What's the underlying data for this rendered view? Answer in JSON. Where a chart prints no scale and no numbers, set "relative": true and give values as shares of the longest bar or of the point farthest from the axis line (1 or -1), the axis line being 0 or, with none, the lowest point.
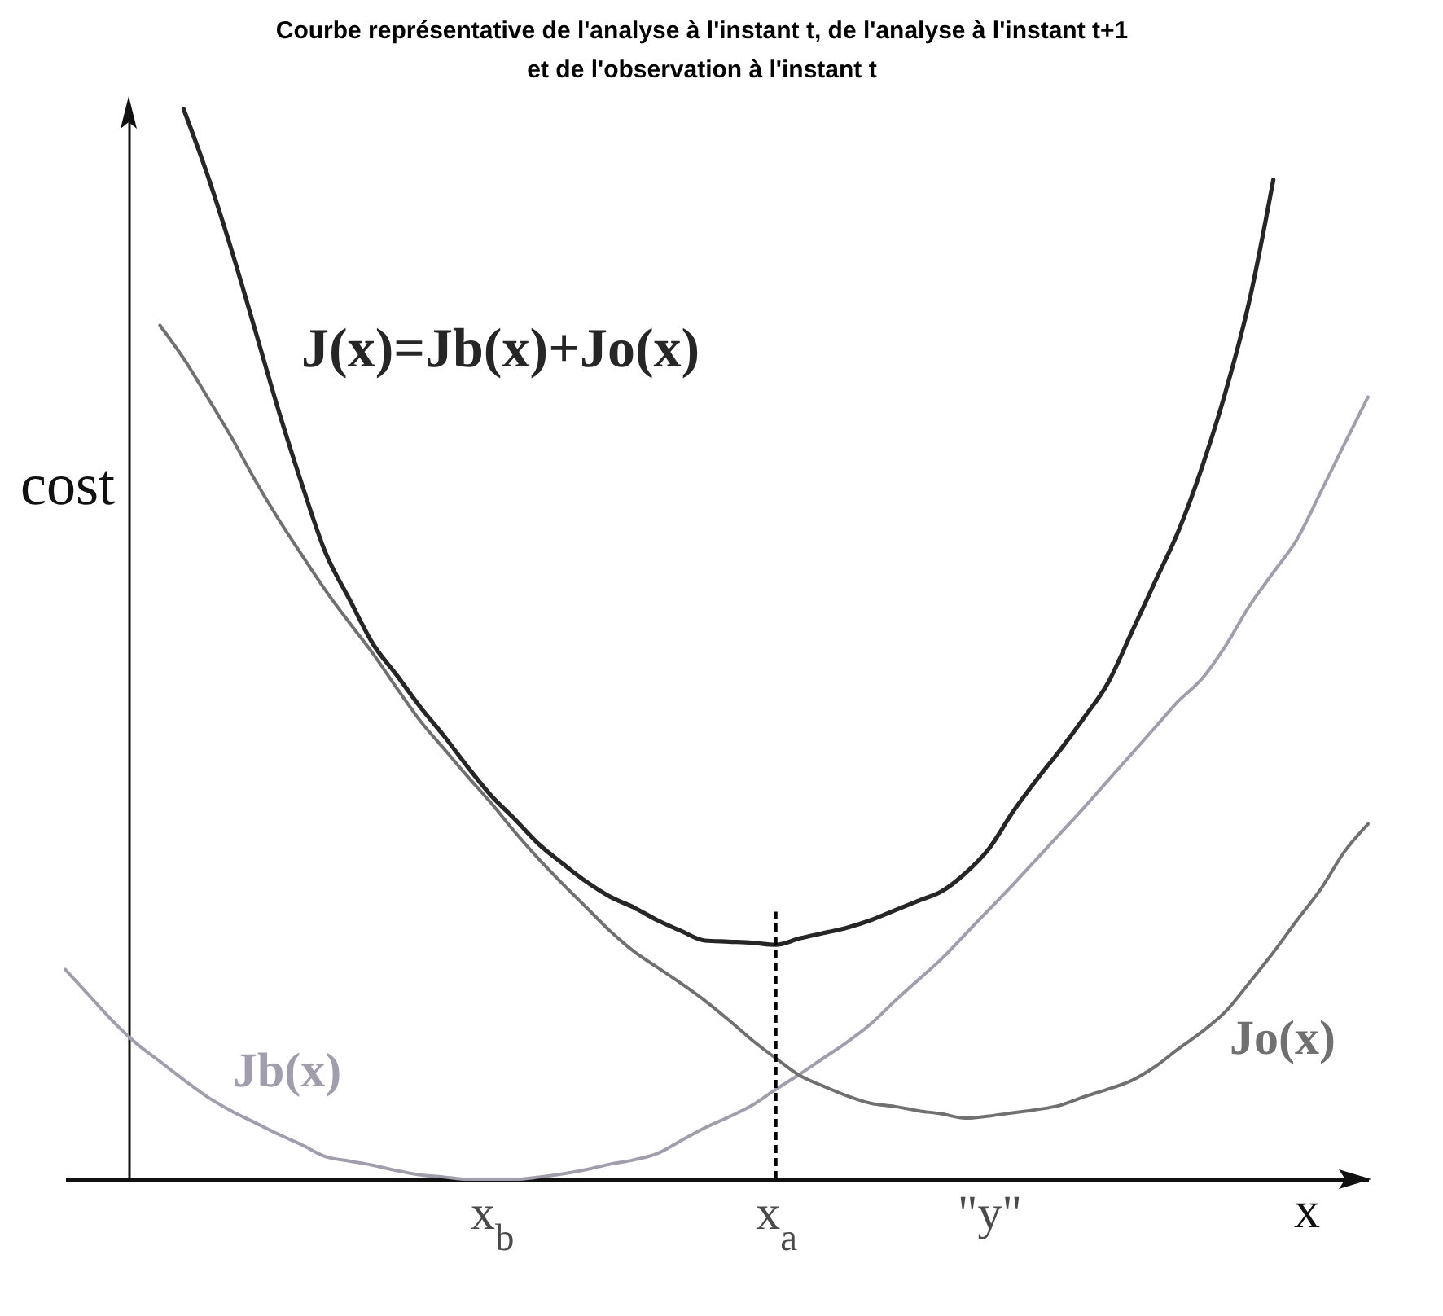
{
  "chart_data": {
    "type": "line",
    "title": "Courbe représentative de l'analyse à l'instant t, de l'analyse à l'instant t+1\net de l'observation à l'instant t",
    "xlabel": "x",
    "ylabel": "cost",
    "relative": true,
    "categories": [
      null,
      null,
      null,
      null,
      null,
      null,
      null,
      null,
      null,
      null,
      null,
      null,
      null,
      null,
      null,
      null,
      null,
      null,
      "x$_{b}$",
      null,
      null,
      null,
      null,
      null,
      null,
      null,
      null,
      null,
      null,
      null,
      "x$_{a}$",
      null,
      null,
      null,
      null,
      null,
      null,
      null,
      null,
      "\"y\"",
      null,
      null,
      null,
      null,
      null,
      null,
      null,
      null,
      null,
      null,
      null,
      null,
      null,
      null,
      null,
      null
    ],
    "series": [
      {
        "name": "J(x)=Jb(x)+Jo(x)",
        "color": "#262626",
        "values": [
          null,
          null,
          null,
          null,
          null,
          1.0,
          0.939,
          0.87,
          0.795,
          0.719,
          0.649,
          0.585,
          0.542,
          0.5,
          0.471,
          0.441,
          0.414,
          0.385,
          0.358,
          0.336,
          0.313,
          0.295,
          0.278,
          0.264,
          0.254,
          0.242,
          0.232,
          0.223,
          0.222,
          0.221,
          0.219,
          0.225,
          0.23,
          0.235,
          0.242,
          0.251,
          0.26,
          0.269,
          0.286,
          0.309,
          0.343,
          0.373,
          0.401,
          0.431,
          0.463,
          0.51,
          0.558,
          0.606,
          0.666,
          0.737,
          0.822,
          0.934,
          null,
          null,
          null,
          null
        ]
      },
      {
        "name": "Jb(x)",
        "color": "#a19daa",
        "values": [
          0.196,
          0.172,
          0.148,
          0.127,
          0.11,
          0.093,
          0.077,
          0.064,
          0.053,
          0.042,
          0.032,
          0.021,
          0.017,
          0.013,
          0.008,
          0.004,
          0.002,
          0,
          0,
          0,
          0.002,
          0.005,
          0.009,
          0.014,
          0.018,
          0.024,
          0.036,
          0.048,
          0.058,
          0.069,
          0.084,
          0.098,
          0.113,
          0.128,
          0.145,
          0.166,
          0.186,
          0.206,
          0.229,
          0.252,
          0.275,
          0.299,
          0.323,
          0.347,
          0.372,
          0.397,
          0.422,
          0.447,
          0.468,
          0.499,
          0.536,
          0.567,
          0.598,
          0.642,
          0.687,
          0.731
        ]
      },
      {
        "name": "Jo(x)",
        "color": "#707070",
        "values": [
          null,
          null,
          null,
          null,
          0.798,
          0.767,
          0.731,
          0.694,
          0.654,
          0.617,
          0.583,
          0.55,
          0.52,
          0.491,
          0.459,
          0.428,
          0.402,
          0.376,
          0.351,
          0.324,
          0.299,
          0.276,
          0.254,
          0.232,
          0.213,
          0.198,
          0.183,
          0.167,
          0.149,
          0.13,
          0.113,
          0.097,
          0.087,
          0.078,
          0.071,
          0.068,
          0.064,
          0.061,
          0.057,
          0.059,
          0.062,
          0.065,
          0.069,
          0.077,
          0.084,
          0.092,
          0.105,
          0.122,
          0.138,
          0.157,
          0.184,
          0.212,
          0.242,
          0.271,
          0.306,
          0.332
        ]
      },
      {
        "color": "#000000",
        "line_style": "dashed",
        "x": [
          "x$_{a}$",
          "x$_{a}$"
        ],
        "values": [
          0,
          0.25
        ]
      }
    ]
  }
}
